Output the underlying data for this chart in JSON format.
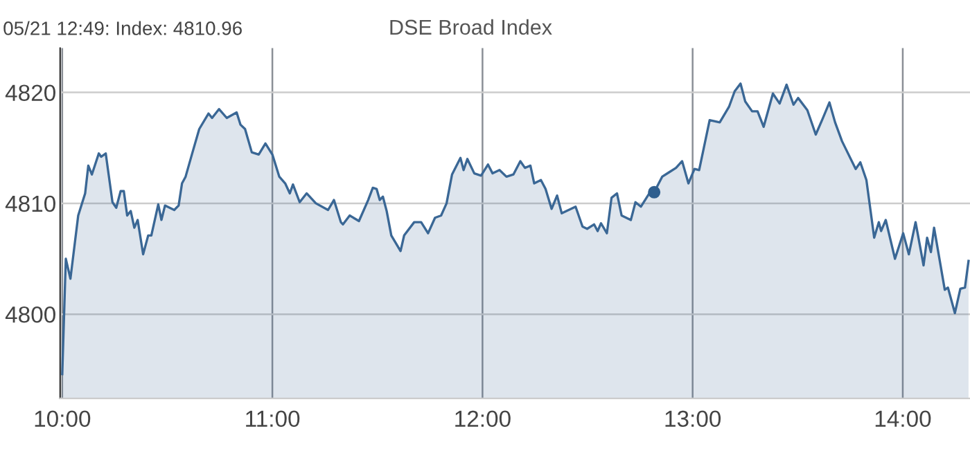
{
  "chart_data": {
    "type": "area",
    "title": "DSE Broad Index",
    "annotations": [
      "05/21 12:49: Index: 4810.96"
    ],
    "x": [
      10.0,
      10.017,
      10.039,
      10.076,
      10.109,
      10.124,
      10.141,
      10.174,
      10.185,
      10.207,
      10.239,
      10.257,
      10.278,
      10.293,
      10.309,
      10.326,
      10.343,
      10.359,
      10.385,
      10.409,
      10.424,
      10.457,
      10.472,
      10.489,
      10.533,
      10.554,
      10.57,
      10.587,
      10.62,
      10.652,
      10.696,
      10.713,
      10.746,
      10.783,
      10.83,
      10.848,
      10.87,
      10.902,
      10.935,
      10.967,
      11.0,
      11.033,
      11.061,
      11.083,
      11.098,
      11.13,
      11.163,
      11.207,
      11.265,
      11.293,
      11.326,
      11.336,
      11.368,
      11.412,
      11.456,
      11.478,
      11.496,
      11.511,
      11.526,
      11.544,
      11.566,
      11.61,
      11.627,
      11.675,
      11.708,
      11.741,
      11.774,
      11.803,
      11.829,
      11.855,
      11.895,
      11.91,
      11.928,
      11.961,
      11.993,
      12.026,
      12.048,
      12.081,
      12.114,
      12.147,
      12.18,
      12.202,
      12.228,
      12.246,
      12.278,
      12.3,
      12.329,
      12.355,
      12.377,
      12.443,
      12.476,
      12.498,
      12.531,
      12.548,
      12.564,
      12.592,
      12.614,
      12.64,
      12.662,
      12.706,
      12.728,
      12.754,
      12.794,
      12.817,
      12.855,
      12.888,
      12.921,
      12.95,
      12.98,
      13.009,
      13.031,
      13.081,
      13.129,
      13.173,
      13.2,
      13.228,
      13.25,
      13.283,
      13.309,
      13.338,
      13.382,
      13.414,
      13.447,
      13.48,
      13.502,
      13.546,
      13.586,
      13.618,
      13.651,
      13.678,
      13.711,
      13.776,
      13.798,
      13.827,
      13.864,
      13.886,
      13.897,
      13.919,
      13.963,
      14.002,
      14.029,
      14.061,
      14.099,
      14.116,
      14.134,
      14.149,
      14.2,
      14.215,
      14.248,
      14.274,
      14.296,
      14.313
    ],
    "series": [
      {
        "color": "#3a6795",
        "values": [
          4794.6,
          4805.0,
          4803.2,
          4808.9,
          4810.9,
          4813.4,
          4812.6,
          4814.5,
          4814.2,
          4814.5,
          4810.1,
          4809.6,
          4811.1,
          4811.1,
          4808.9,
          4809.3,
          4807.8,
          4808.5,
          4805.4,
          4807.1,
          4807.1,
          4809.9,
          4808.5,
          4809.8,
          4809.4,
          4809.8,
          4811.8,
          4812.4,
          4814.6,
          4816.7,
          4818.1,
          4817.7,
          4818.5,
          4817.7,
          4818.2,
          4817.1,
          4816.7,
          4814.6,
          4814.4,
          4815.4,
          4814.4,
          4812.4,
          4811.8,
          4810.9,
          4811.7,
          4810.1,
          4810.9,
          4810.0,
          4809.4,
          4810.3,
          4808.3,
          4808.1,
          4808.9,
          4808.4,
          4810.3,
          4811.4,
          4811.3,
          4810.3,
          4810.6,
          4809.3,
          4807.1,
          4805.7,
          4807.1,
          4808.3,
          4808.3,
          4807.3,
          4808.7,
          4808.9,
          4810.0,
          4812.6,
          4814.1,
          4813.0,
          4814.0,
          4812.7,
          4812.5,
          4813.5,
          4812.7,
          4813.0,
          4812.4,
          4812.6,
          4813.8,
          4813.2,
          4813.4,
          4811.8,
          4812.1,
          4811.3,
          4809.5,
          4810.7,
          4809.1,
          4809.7,
          4807.9,
          4807.7,
          4808.1,
          4807.5,
          4808.2,
          4807.3,
          4810.5,
          4810.9,
          4808.9,
          4808.5,
          4810.1,
          4809.7,
          4810.9,
          4811.0,
          4812.4,
          4812.8,
          4813.2,
          4813.8,
          4811.8,
          4813.1,
          4813.0,
          4817.5,
          4817.3,
          4818.7,
          4820.1,
          4820.8,
          4819.2,
          4818.3,
          4818.3,
          4816.9,
          4819.9,
          4819.0,
          4820.7,
          4818.9,
          4819.5,
          4818.4,
          4816.2,
          4817.6,
          4819.1,
          4817.3,
          4815.6,
          4813.1,
          4813.7,
          4812.1,
          4806.9,
          4808.3,
          4807.5,
          4808.5,
          4805.0,
          4807.3,
          4805.4,
          4808.3,
          4804.4,
          4806.9,
          4805.6,
          4807.8,
          4802.2,
          4802.4,
          4800.1,
          4802.3,
          4802.4,
          4804.8
        ]
      },
      {
        "type": "scatter",
        "marker": "circle",
        "color": "#2f5f8f",
        "x": [
          12.817
        ],
        "values": [
          4811.0
        ]
      }
    ],
    "xlim": [
      9.99,
      14.32
    ],
    "ylim": [
      4792.4,
      4824
    ],
    "xticks": [
      {
        "value": 10,
        "label": "10:00"
      },
      {
        "value": 11,
        "label": "11:00"
      },
      {
        "value": 12,
        "label": "12:00"
      },
      {
        "value": 13,
        "label": "13:00"
      },
      {
        "value": 14,
        "label": "14:00"
      }
    ],
    "yticks": [
      4800,
      4810,
      4820
    ],
    "grid": true
  }
}
